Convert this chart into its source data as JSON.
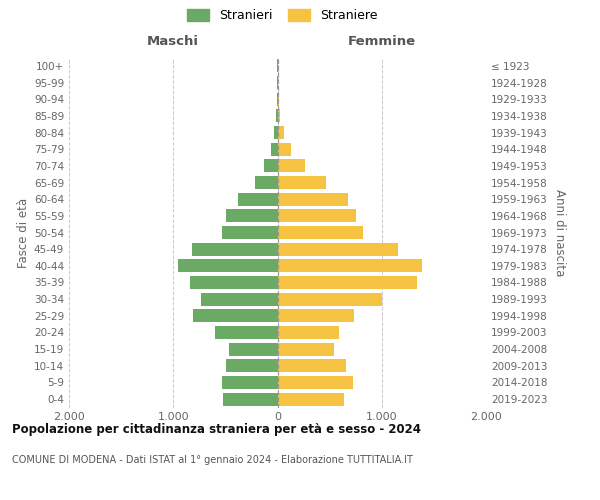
{
  "age_groups": [
    "0-4",
    "5-9",
    "10-14",
    "15-19",
    "20-24",
    "25-29",
    "30-34",
    "35-39",
    "40-44",
    "45-49",
    "50-54",
    "55-59",
    "60-64",
    "65-69",
    "70-74",
    "75-79",
    "80-84",
    "85-89",
    "90-94",
    "95-99",
    "100+"
  ],
  "birth_years": [
    "2019-2023",
    "2014-2018",
    "2009-2013",
    "2004-2008",
    "1999-2003",
    "1994-1998",
    "1989-1993",
    "1984-1988",
    "1979-1983",
    "1974-1978",
    "1969-1973",
    "1964-1968",
    "1959-1963",
    "1954-1958",
    "1949-1953",
    "1944-1948",
    "1939-1943",
    "1934-1938",
    "1929-1933",
    "1924-1928",
    "≤ 1923"
  ],
  "males": [
    525,
    535,
    495,
    465,
    600,
    810,
    730,
    840,
    950,
    820,
    530,
    490,
    375,
    220,
    125,
    58,
    38,
    18,
    8,
    3,
    3
  ],
  "females": [
    635,
    720,
    660,
    540,
    590,
    730,
    1000,
    1340,
    1390,
    1160,
    820,
    750,
    680,
    465,
    265,
    130,
    60,
    28,
    18,
    3,
    3
  ],
  "male_color": "#6aaa64",
  "female_color": "#f5c242",
  "background_color": "#ffffff",
  "grid_color": "#c8c8c8",
  "title": "Popolazione per cittadinanza straniera per età e sesso - 2024",
  "subtitle": "COMUNE DI MODENA - Dati ISTAT al 1° gennaio 2024 - Elaborazione TUTTITALIA.IT",
  "xlabel_left": "Maschi",
  "xlabel_right": "Femmine",
  "ylabel_left": "Fasce di età",
  "ylabel_right": "Anni di nascita",
  "legend_male": "Stranieri",
  "legend_female": "Straniere",
  "xlim": 2000,
  "xtick_labels": [
    "2.000",
    "1.000",
    "0",
    "1.000",
    "2.000"
  ]
}
